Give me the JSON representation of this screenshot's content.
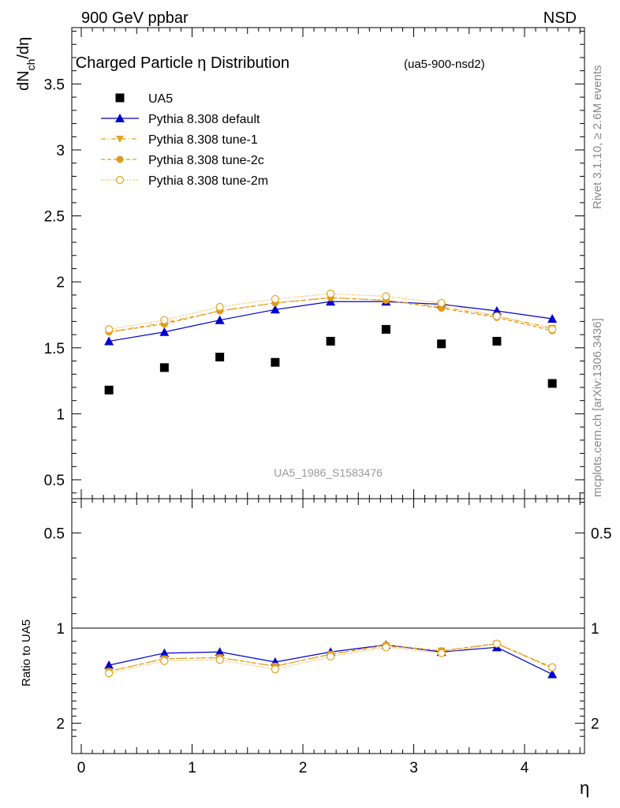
{
  "header": {
    "left": "900 GeV ppbar",
    "right": "NSD"
  },
  "side_labels": {
    "rivet": "Rivet 3.1.10, ≥ 2.6M events",
    "mcplots": "mcplots.cern.ch [arXiv:1306.3436]"
  },
  "chart_data": [
    {
      "type": "scatter",
      "title": "Charged Particle η Distribution",
      "title_tag": "(ua5-900-nsd2)",
      "watermark": "UA5_1986_S1583476",
      "ylabel": "dN_ch/dη",
      "ylim": [
        0.35,
        3.95
      ],
      "yticks": [
        0.5,
        1,
        1.5,
        2,
        2.5,
        3,
        3.5
      ],
      "ytick_labels": [
        "0.5",
        "1",
        "1.5",
        "2",
        "2.5",
        "3",
        "3.5"
      ],
      "xlim": [
        -0.1,
        4.6
      ],
      "legend_position": "top-left",
      "x": [
        0.25,
        0.75,
        1.25,
        1.75,
        2.25,
        2.75,
        3.25,
        3.75,
        4.25
      ],
      "series": [
        {
          "name": "UA5",
          "color": "#000000",
          "marker": "square",
          "line": "none",
          "values": [
            1.18,
            1.35,
            1.43,
            1.39,
            1.55,
            1.64,
            1.53,
            1.55,
            1.23
          ]
        },
        {
          "name": "Pythia 8.308 default",
          "color": "#0000cc",
          "marker": "triangle-up",
          "line": "solid",
          "values": [
            1.55,
            1.62,
            1.71,
            1.79,
            1.85,
            1.85,
            1.83,
            1.78,
            1.72
          ]
        },
        {
          "name": "Pythia 8.308 tune-1",
          "color": "#e8a417",
          "marker": "triangle-down",
          "line": "dashdot",
          "values": [
            1.62,
            1.69,
            1.78,
            1.84,
            1.88,
            1.86,
            1.81,
            1.74,
            1.65
          ]
        },
        {
          "name": "Pythia 8.308 tune-2c",
          "color": "#e09a1c",
          "marker": "circle",
          "line": "dashed",
          "values": [
            1.62,
            1.68,
            1.78,
            1.84,
            1.88,
            1.86,
            1.8,
            1.73,
            1.63
          ]
        },
        {
          "name": "Pythia 8.308 tune-2m",
          "color": "#e8a417",
          "marker": "circle-open",
          "line": "dotted",
          "values": [
            1.64,
            1.71,
            1.81,
            1.87,
            1.91,
            1.89,
            1.84,
            1.74,
            1.64
          ]
        }
      ]
    },
    {
      "type": "line",
      "ylabel": "Ratio to UA5",
      "xlabel": "η",
      "ylim": [
        0.35,
        2.3
      ],
      "yticks": [
        0.5,
        1,
        2
      ],
      "ytick_labels": [
        "0.5",
        "1",
        "2"
      ],
      "xlim": [
        -0.1,
        4.6
      ],
      "xticks": [
        0,
        1,
        2,
        3,
        4
      ],
      "xtick_labels": [
        "0",
        "1",
        "2",
        "3",
        "4"
      ],
      "x": [
        0.25,
        0.75,
        1.25,
        1.75,
        2.25,
        2.75,
        3.25,
        3.75,
        4.25
      ],
      "bands": [
        {
          "x0": 0.0,
          "x1": 0.5,
          "inner": 0.03,
          "outer": 0.055
        },
        {
          "x0": 0.5,
          "x1": 1.0,
          "inner": 0.025,
          "outer": 0.045
        },
        {
          "x0": 1.0,
          "x1": 1.5,
          "inner": 0.025,
          "outer": 0.045
        },
        {
          "x0": 1.5,
          "x1": 2.0,
          "inner": 0.025,
          "outer": 0.045
        },
        {
          "x0": 2.0,
          "x1": 2.5,
          "inner": 0.02,
          "outer": 0.04
        },
        {
          "x0": 2.5,
          "x1": 3.0,
          "inner": 0.02,
          "outer": 0.035
        },
        {
          "x0": 3.0,
          "x1": 3.5,
          "inner": 0.03,
          "outer": 0.05
        },
        {
          "x0": 3.5,
          "x1": 4.0,
          "inner": 0.03,
          "outer": 0.05
        },
        {
          "x0": 4.0,
          "x1": 4.5,
          "inner": 0.06,
          "outer": 0.08
        }
      ],
      "series": [
        {
          "name": "Pythia 8.308 default",
          "color": "#0000cc",
          "marker": "triangle-up",
          "line": "solid",
          "values": [
            1.31,
            1.2,
            1.19,
            1.28,
            1.19,
            1.13,
            1.19,
            1.15,
            1.4
          ]
        },
        {
          "name": "Pythia 8.308 tune-1",
          "color": "#e8a417",
          "marker": "triangle-down",
          "line": "dashdot",
          "values": [
            1.37,
            1.25,
            1.24,
            1.32,
            1.21,
            1.14,
            1.18,
            1.12,
            1.34
          ]
        },
        {
          "name": "Pythia 8.308 tune-2c",
          "color": "#e09a1c",
          "marker": "circle",
          "line": "dashed",
          "values": [
            1.37,
            1.25,
            1.24,
            1.32,
            1.21,
            1.13,
            1.18,
            1.12,
            1.33
          ]
        },
        {
          "name": "Pythia 8.308 tune-2m",
          "color": "#e8a417",
          "marker": "circle-open",
          "line": "dotted",
          "values": [
            1.39,
            1.27,
            1.26,
            1.35,
            1.23,
            1.15,
            1.2,
            1.12,
            1.33
          ]
        }
      ]
    }
  ]
}
